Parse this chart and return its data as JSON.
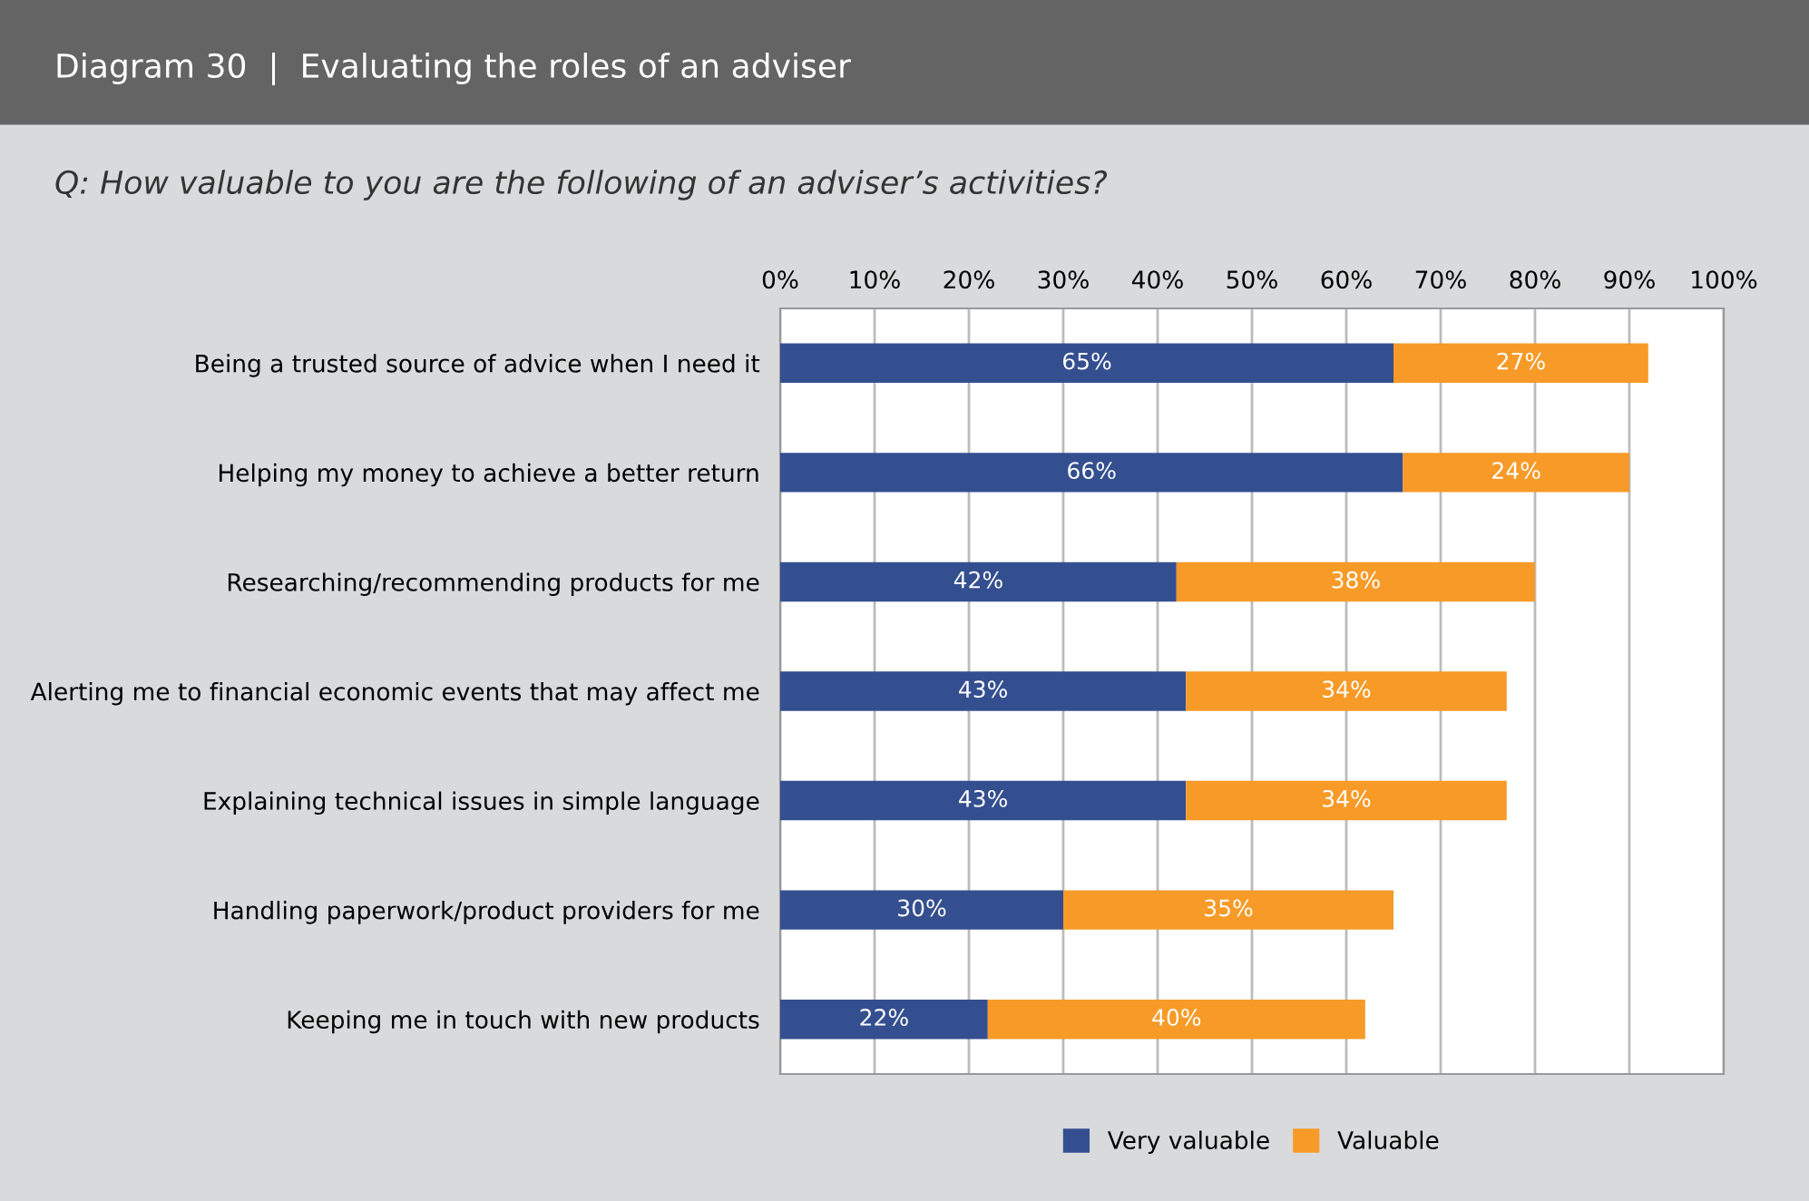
{
  "chart_data": {
    "type": "bar",
    "title": "Diagram 30  |  Evaluating the roles of an adviser",
    "subtitle": "Q: How valuable to you are the following of an adviser’s activities?",
    "categories": [
      "Being a trusted source of advice when I need it",
      "Helping my money to achieve a better return",
      "Researching/recommending products for me",
      "Alerting me to financial economic events that may affect me",
      "Explaining technical issues in simple language",
      "Handling paperwork/product providers for me",
      "Keeping me in touch with new products"
    ],
    "series": [
      {
        "name": "Very valuable",
        "color": "#344f8f",
        "values": [
          65,
          66,
          42,
          43,
          43,
          30,
          22
        ],
        "value_labels": [
          "65%",
          "66%",
          "42%",
          "43%",
          "43%",
          "30%",
          "22%"
        ]
      },
      {
        "name": "Valuable",
        "color": "#f79a27",
        "values": [
          27,
          24,
          38,
          34,
          34,
          35,
          40
        ],
        "value_labels": [
          "27%",
          "24%",
          "38%",
          "34%",
          "34%",
          "35%",
          "40%"
        ]
      }
    ],
    "stacked": true,
    "orientation": "horizontal",
    "xlim": [
      0,
      100
    ],
    "xticks": [
      {
        "value": 0,
        "label": "0%"
      },
      {
        "value": 10,
        "label": "10%"
      },
      {
        "value": 20,
        "label": "20%"
      },
      {
        "value": 30,
        "label": "30%"
      },
      {
        "value": 40,
        "label": "40%"
      },
      {
        "value": 50,
        "label": "50%"
      },
      {
        "value": 60,
        "label": "60%"
      },
      {
        "value": 70,
        "label": "70%"
      },
      {
        "value": 80,
        "label": "80%"
      },
      {
        "value": 90,
        "label": "90%"
      },
      {
        "value": 100,
        "label": "100%"
      }
    ],
    "grid": "x",
    "legend": "bottom"
  }
}
